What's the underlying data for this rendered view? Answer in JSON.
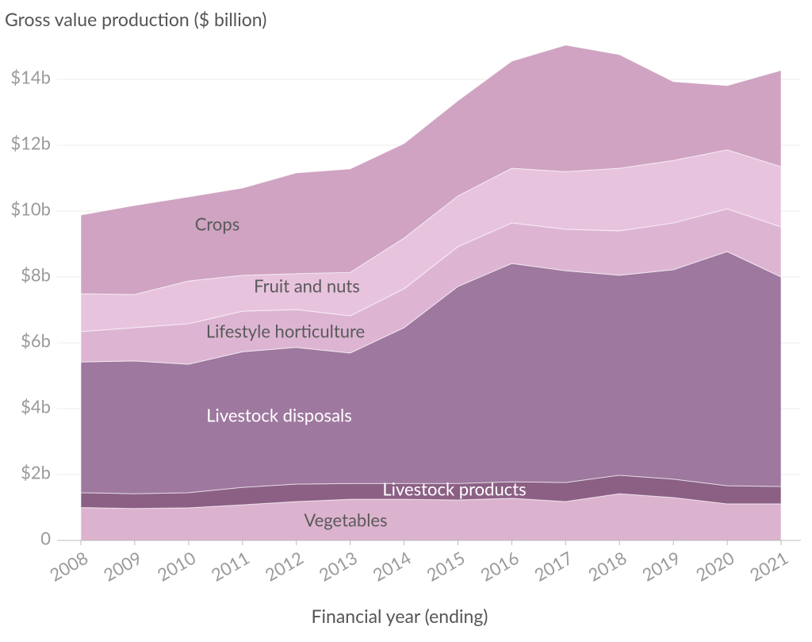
{
  "chart_data": {
    "type": "stacked-area",
    "title": "Gross value production ($ billion)",
    "x_label": "Financial year (ending)",
    "categories": [
      "2008",
      "2009",
      "2010",
      "2011",
      "2012",
      "2013",
      "2014",
      "2015",
      "2016",
      "2017",
      "2018",
      "2019",
      "2020",
      "2021"
    ],
    "series": [
      {
        "name": "Vegetables",
        "color": "#dcb3cf",
        "values": [
          1.0,
          0.97,
          0.99,
          1.08,
          1.18,
          1.25,
          1.25,
          1.23,
          1.28,
          1.18,
          1.42,
          1.3,
          1.11,
          1.11
        ]
      },
      {
        "name": "Livestock products",
        "color": "#8c6084",
        "values": [
          0.45,
          0.45,
          0.46,
          0.53,
          0.53,
          0.48,
          0.48,
          0.5,
          0.5,
          0.58,
          0.56,
          0.56,
          0.55,
          0.53
        ]
      },
      {
        "name": "Livestock disposals",
        "color": "#9e789f",
        "values": [
          3.97,
          4.03,
          3.9,
          4.12,
          4.15,
          3.96,
          4.73,
          5.98,
          6.63,
          6.43,
          6.07,
          6.36,
          7.11,
          6.36
        ]
      },
      {
        "name": "Lifestyle horticulture",
        "color": "#ddb5d3",
        "values": [
          0.92,
          1.01,
          1.23,
          1.23,
          1.15,
          1.13,
          1.18,
          1.21,
          1.23,
          1.26,
          1.35,
          1.42,
          1.3,
          1.52
        ]
      },
      {
        "name": "Fruit and nuts",
        "color": "#e8c3de",
        "values": [
          1.15,
          1.01,
          1.3,
          1.09,
          1.09,
          1.32,
          1.54,
          1.54,
          1.66,
          1.75,
          1.9,
          1.9,
          1.79,
          1.83
        ]
      },
      {
        "name": "Crops",
        "color": "#cfa3c1",
        "values": [
          2.39,
          2.7,
          2.55,
          2.65,
          3.06,
          3.14,
          2.87,
          2.89,
          3.25,
          3.84,
          3.45,
          2.39,
          1.95,
          2.92
        ]
      }
    ],
    "ylim": [
      0,
      15
    ],
    "yticks": [
      0,
      {
        "value": 2,
        "label": "$2b"
      },
      {
        "value": 4,
        "label": "$4b"
      },
      {
        "value": 6,
        "label": "$6b"
      },
      {
        "value": 8,
        "label": "$8b"
      },
      {
        "value": 10,
        "label": "$10b"
      },
      {
        "value": 12,
        "label": "$12b"
      },
      {
        "value": 14,
        "label": "$14b"
      }
    ],
    "grid": true
  }
}
